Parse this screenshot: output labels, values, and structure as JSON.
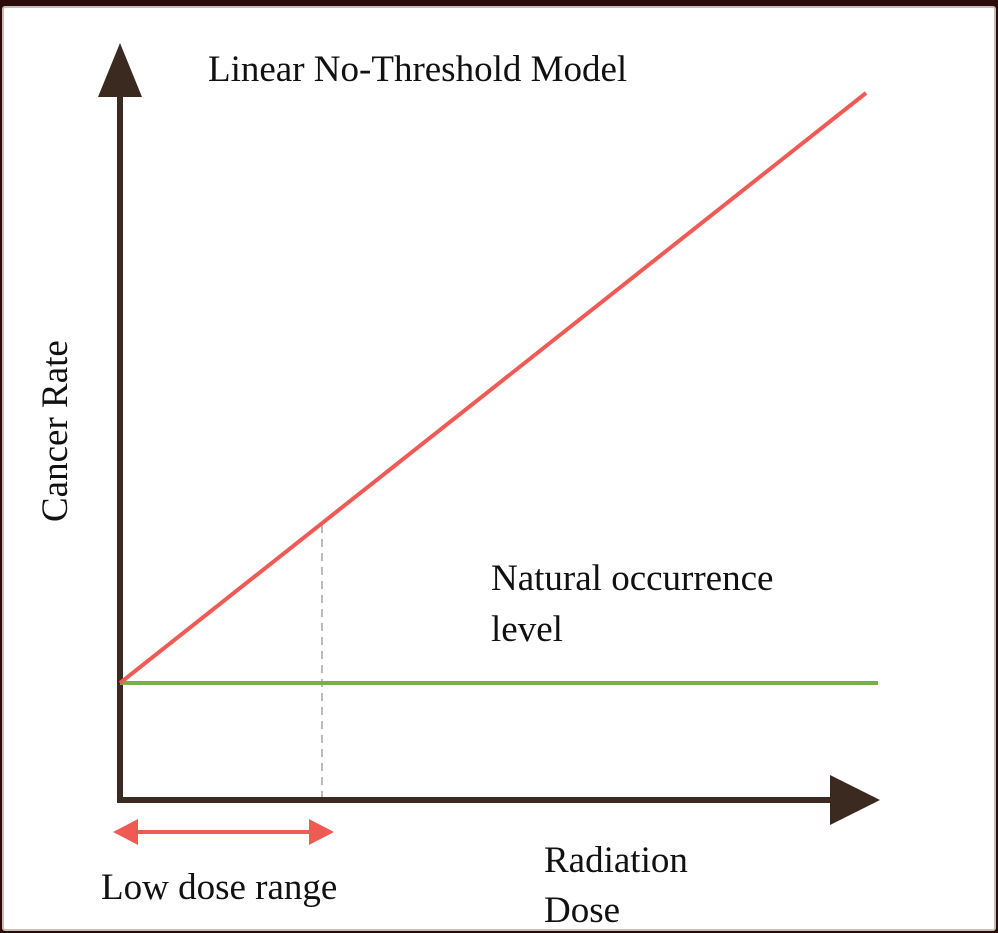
{
  "title": "Linear No-Threshold Model",
  "y_axis_label": "Cancer Rate",
  "x_axis_label": [
    "Radiation",
    "Dose"
  ],
  "natural_level_label": [
    "Natural occurrence",
    "level"
  ],
  "low_dose_label": "Low dose range",
  "colors": {
    "axis": "#3a2a1f",
    "lnt_line": "#f05a55",
    "natural_level": "#78b143",
    "low_dose_arrow": "#f05a55",
    "dashed_marker": "#bbbbbb"
  }
}
